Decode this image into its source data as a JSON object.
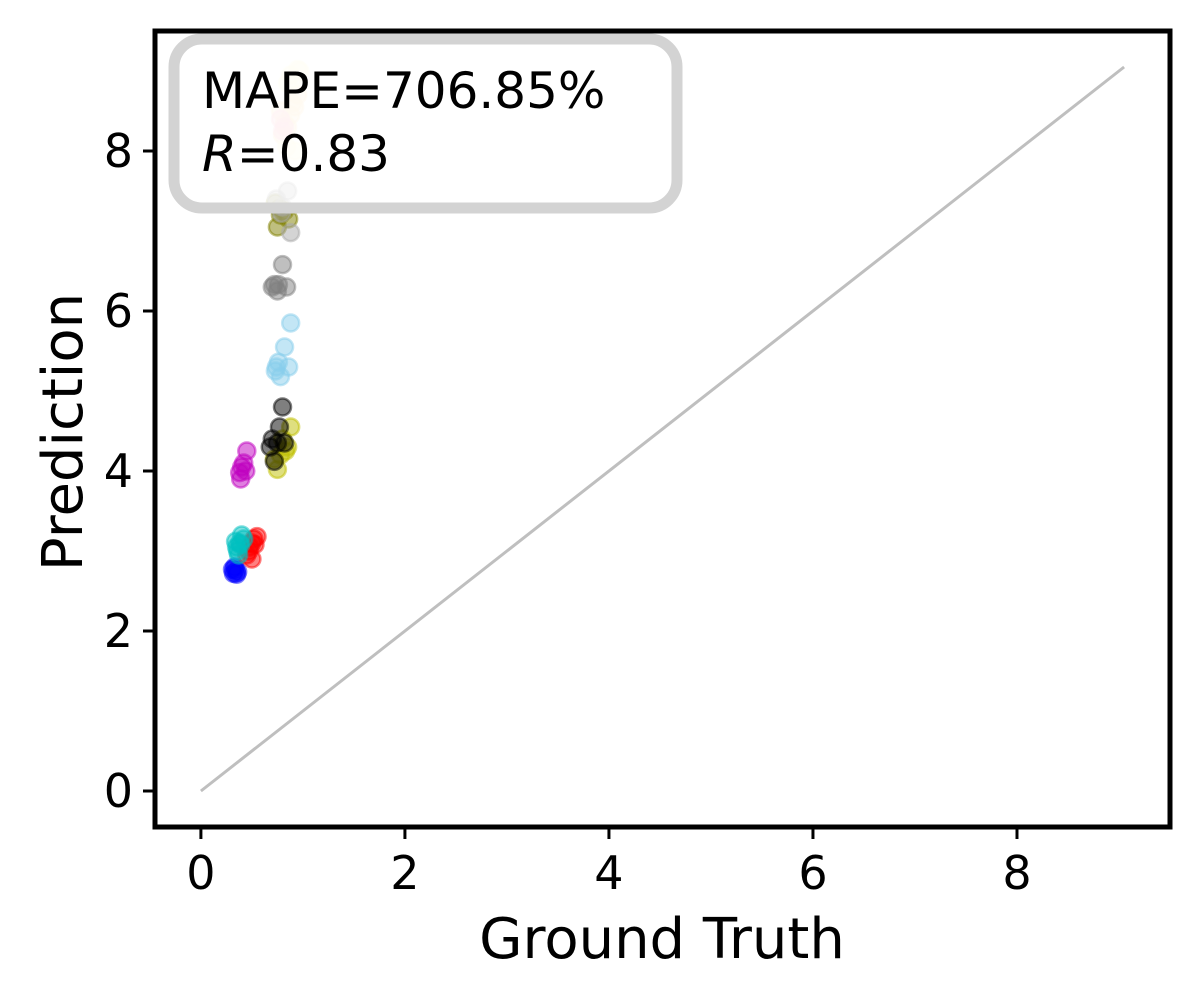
{
  "chart_data": {
    "type": "scatter",
    "xlabel": "Ground Truth",
    "ylabel": "Prediction",
    "xlim": [
      -0.45,
      9.5
    ],
    "ylim": [
      -0.45,
      9.5
    ],
    "x_ticks": [
      0,
      2,
      4,
      6,
      8
    ],
    "y_ticks": [
      0,
      2,
      4,
      6,
      8
    ],
    "grid": false,
    "annotation": {
      "mape_text": "MAPE=706.85%",
      "r_symbol": "R",
      "r_value_text": "=0.83",
      "placement": "top-left"
    },
    "reference_line": {
      "x": [
        0,
        9.05
      ],
      "y": [
        0,
        9.05
      ],
      "color": "#bfbfbf"
    },
    "series": [
      {
        "color": "#0000ff",
        "points": [
          [
            0.32,
            2.72
          ],
          [
            0.34,
            2.76
          ],
          [
            0.36,
            2.74
          ],
          [
            0.33,
            2.8
          ],
          [
            0.35,
            2.71
          ],
          [
            0.31,
            2.77
          ]
        ]
      },
      {
        "color": "#ff0000",
        "points": [
          [
            0.5,
            3.1
          ],
          [
            0.52,
            3.15
          ],
          [
            0.48,
            3.05
          ],
          [
            0.55,
            3.18
          ],
          [
            0.45,
            2.95
          ],
          [
            0.5,
            2.9
          ],
          [
            0.47,
            3.0
          ],
          [
            0.53,
            3.08
          ]
        ]
      },
      {
        "color": "#00bfbf",
        "points": [
          [
            0.35,
            3.05
          ],
          [
            0.4,
            3.2
          ],
          [
            0.38,
            3.1
          ],
          [
            0.36,
            3.0
          ],
          [
            0.42,
            3.15
          ],
          [
            0.37,
            2.95
          ],
          [
            0.39,
            3.08
          ],
          [
            0.34,
            3.12
          ]
        ]
      },
      {
        "color": "#bf00bf",
        "points": [
          [
            0.45,
            4.25
          ],
          [
            0.4,
            4.05
          ],
          [
            0.38,
            3.98
          ],
          [
            0.42,
            4.1
          ],
          [
            0.39,
            3.9
          ],
          [
            0.44,
            4.0
          ]
        ]
      },
      {
        "color": "#bfbf00",
        "points": [
          [
            0.75,
            4.02
          ],
          [
            0.85,
            4.3
          ],
          [
            0.88,
            4.55
          ],
          [
            0.8,
            4.4
          ],
          [
            0.78,
            4.2
          ],
          [
            0.83,
            4.25
          ],
          [
            0.72,
            4.15
          ]
        ]
      },
      {
        "color": "#000000",
        "points": [
          [
            0.68,
            4.3
          ],
          [
            0.7,
            4.4
          ],
          [
            0.75,
            4.35
          ],
          [
            0.8,
            4.8
          ],
          [
            0.82,
            4.35
          ],
          [
            0.72,
            4.12
          ],
          [
            0.77,
            4.55
          ]
        ]
      },
      {
        "color": "#87ceeb",
        "points": [
          [
            0.74,
            5.3
          ],
          [
            0.76,
            5.36
          ],
          [
            0.78,
            5.18
          ],
          [
            0.82,
            5.55
          ],
          [
            0.86,
            5.3
          ],
          [
            0.88,
            5.85
          ],
          [
            0.73,
            5.25
          ]
        ]
      },
      {
        "color": "#808080",
        "points": [
          [
            0.72,
            6.33
          ],
          [
            0.76,
            6.33
          ],
          [
            0.8,
            6.58
          ],
          [
            0.84,
            6.3
          ],
          [
            0.75,
            6.25
          ],
          [
            0.7,
            6.3
          ]
        ]
      },
      {
        "color": "#808000",
        "points": [
          [
            0.75,
            7.05
          ],
          [
            0.78,
            7.2
          ],
          [
            0.82,
            7.25
          ],
          [
            0.86,
            7.15
          ],
          [
            0.73,
            7.35
          ],
          [
            0.77,
            7.28
          ]
        ]
      },
      {
        "color": "#a9a9a9",
        "points": [
          [
            0.88,
            6.98
          ],
          [
            0.85,
            7.5
          ],
          [
            0.8,
            7.3
          ],
          [
            0.74,
            7.4
          ],
          [
            0.79,
            7.22
          ]
        ]
      },
      {
        "color": "#ffe4b5",
        "points": [
          [
            0.8,
            8.2
          ],
          [
            0.85,
            8.3
          ],
          [
            0.9,
            8.6
          ],
          [
            0.95,
            8.7
          ],
          [
            0.88,
            8.45
          ],
          [
            0.82,
            8.35
          ],
          [
            0.92,
            8.55
          ],
          [
            0.78,
            8.5
          ]
        ]
      },
      {
        "color": "#fffacd",
        "points": [
          [
            0.9,
            8.9
          ],
          [
            0.95,
            9.02
          ],
          [
            0.85,
            8.85
          ],
          [
            0.92,
            8.0
          ],
          [
            0.88,
            8.95
          ],
          [
            0.97,
            9.0
          ],
          [
            0.84,
            8.05
          ]
        ]
      },
      {
        "color": "#ffc0cb",
        "points": [
          [
            0.78,
            8.4
          ],
          [
            0.82,
            8.3
          ],
          [
            0.8,
            8.25
          ]
        ]
      }
    ]
  }
}
